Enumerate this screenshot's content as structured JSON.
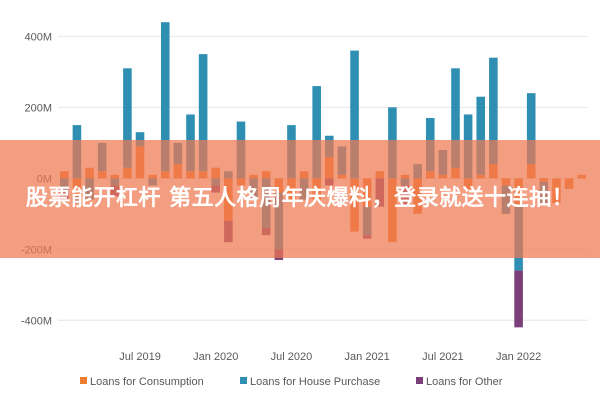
{
  "chart_data": {
    "type": "bar",
    "stacked": true,
    "y_unit_suffix": "M",
    "ylim": [
      -450,
      480
    ],
    "yticks": [
      400,
      200,
      0,
      -200,
      -400
    ],
    "ytick_labels": [
      "400M",
      "200M",
      "0M",
      "-200M",
      "-400M"
    ],
    "x_tick_labels": [
      {
        "label": "Jul 2019",
        "index": 6
      },
      {
        "label": "Jan 2020",
        "index": 12
      },
      {
        "label": "Jul 2020",
        "index": 18
      },
      {
        "label": "Jan 2021",
        "index": 24
      },
      {
        "label": "Jul 2021",
        "index": 30
      },
      {
        "label": "Jan 2022",
        "index": 36
      }
    ],
    "categories": [
      "1",
      "2",
      "3",
      "4",
      "5",
      "6",
      "7",
      "8",
      "9",
      "10",
      "11",
      "12",
      "13",
      "14",
      "15",
      "16",
      "17",
      "18",
      "19",
      "20",
      "21",
      "22",
      "23",
      "24",
      "25",
      "26",
      "27",
      "28",
      "29",
      "30",
      "31",
      "32",
      "33",
      "34",
      "35",
      "36",
      "37",
      "38",
      "39",
      "40",
      "41",
      "42"
    ],
    "series": [
      {
        "name": "Loans for Consumption",
        "color": "#ED7D31",
        "values": [
          20,
          -50,
          30,
          20,
          10,
          30,
          90,
          10,
          20,
          40,
          20,
          20,
          30,
          -120,
          -20,
          10,
          20,
          -40,
          -60,
          20,
          -60,
          60,
          10,
          -150,
          -80,
          20,
          -180,
          10,
          -100,
          20,
          10,
          30,
          -30,
          10,
          40,
          -20,
          -80,
          40,
          -10,
          -70,
          -30,
          10
        ]
      },
      {
        "name": "Loans for House Purchase",
        "color": "#2E8FB2",
        "values": [
          -40,
          150,
          -60,
          80,
          -20,
          280,
          40,
          -20,
          420,
          60,
          160,
          330,
          -20,
          20,
          160,
          -60,
          -140,
          -160,
          150,
          -60,
          260,
          60,
          80,
          360,
          -80,
          0,
          200,
          -20,
          40,
          150,
          70,
          280,
          180,
          220,
          300,
          -80,
          -180,
          200,
          -60,
          0,
          0,
          0
        ]
      },
      {
        "name": "Loans for Other",
        "color": "#7B3F7A",
        "values": [
          -20,
          -20,
          0,
          0,
          -30,
          0,
          0,
          0,
          0,
          0,
          0,
          0,
          -20,
          -60,
          0,
          0,
          -20,
          -30,
          0,
          0,
          0,
          -20,
          0,
          0,
          -10,
          -80,
          0,
          -60,
          0,
          0,
          0,
          0,
          0,
          0,
          0,
          0,
          -160,
          0,
          0,
          0,
          0,
          0
        ]
      }
    ]
  },
  "legend": [
    {
      "label": "Loans for Consumption",
      "color": "#ED7D31"
    },
    {
      "label": "Loans for House Purchase",
      "color": "#2E8FB2"
    },
    {
      "label": "Loans for Other",
      "color": "#7B3F7A"
    }
  ],
  "overlay": {
    "text": "股票能开杠杆 第五人格周年庆爆料，登录就送十连抽！",
    "color": "#F07850"
  }
}
